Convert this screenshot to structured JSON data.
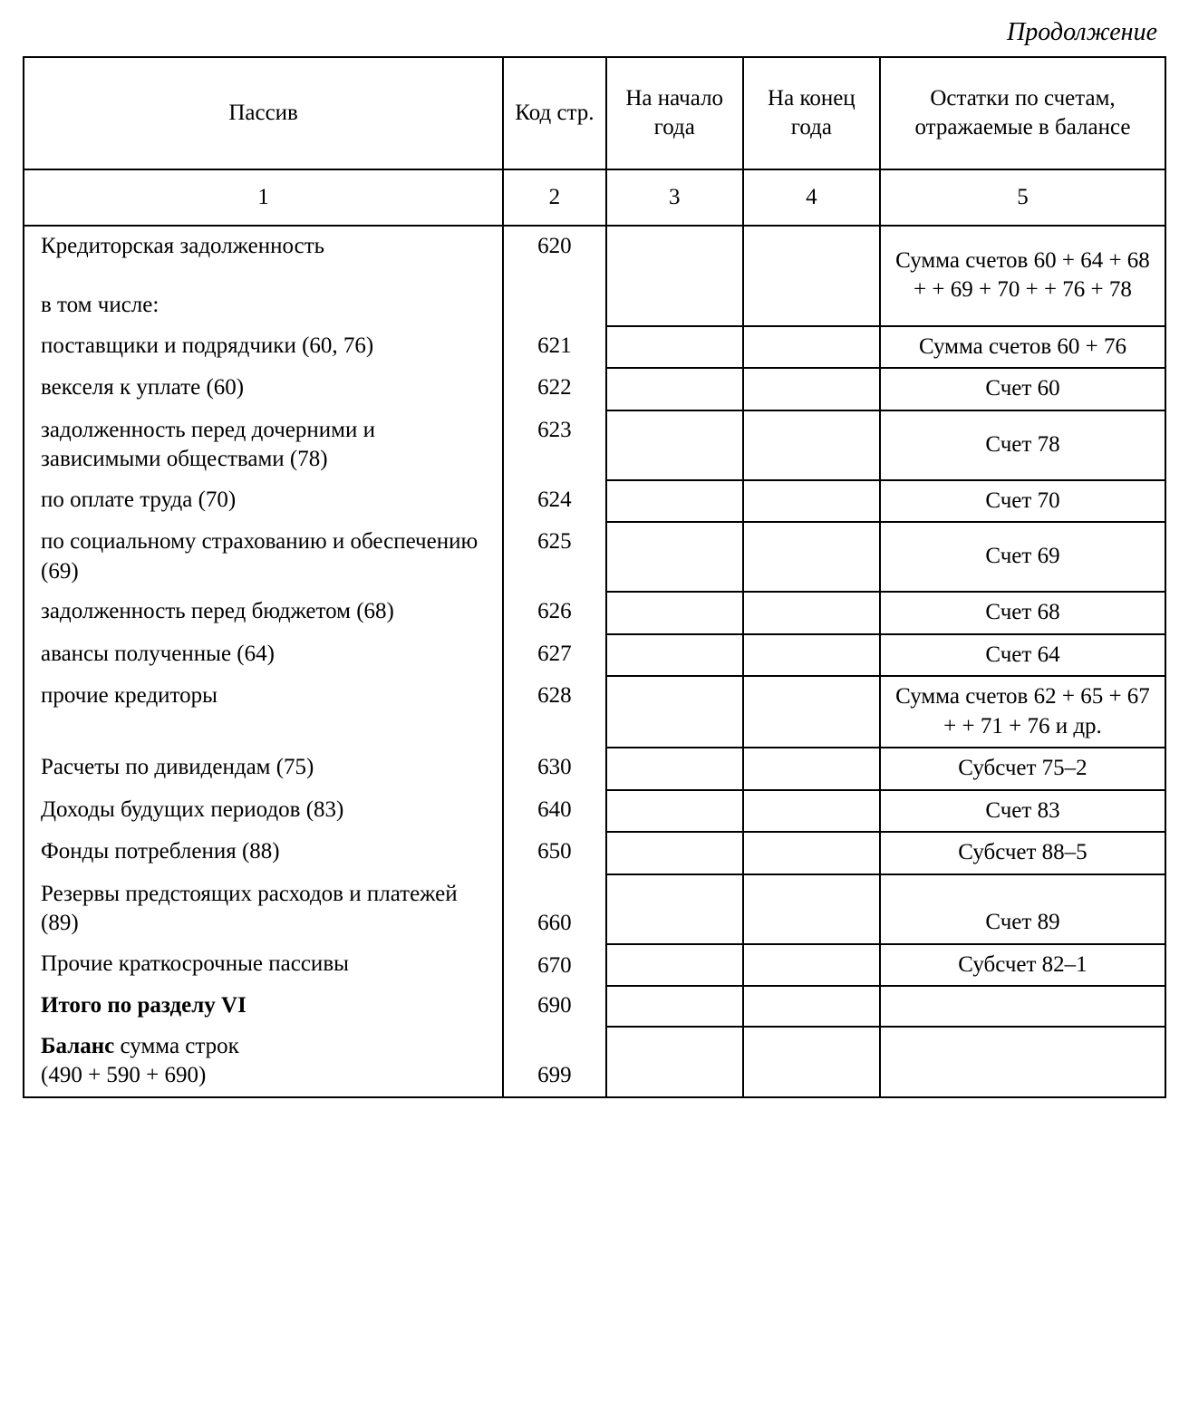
{
  "continuation": "Продолжение",
  "header": {
    "c1": "Пассив",
    "c2": "Код стр.",
    "c3": "На начало года",
    "c4": "На конец года",
    "c5": "Остатки по сче­там, отражаемые в балансе"
  },
  "numrow": {
    "c1": "1",
    "c2": "2",
    "c3": "3",
    "c4": "4",
    "c5": "5"
  },
  "rows": [
    {
      "label": "Кредиторская задолженность\n\nв том числе:",
      "code": "620",
      "start": "",
      "end": "",
      "note": "Сумма счетов 60 + 64 + 68 + + 69 + 70 + + 76 + 78"
    },
    {
      "label": "поставщики и подрядчики (60, 76)",
      "code": "621",
      "start": "",
      "end": "",
      "note": "Сумма счетов 60 + 76"
    },
    {
      "label": "векселя к уплате (60)",
      "code": "622",
      "start": "",
      "end": "",
      "note": "Счет 60"
    },
    {
      "label": "задолженность перед дочерни­ми и зависимыми обществами (78)",
      "code": "623",
      "start": "",
      "end": "",
      "note": "Счет 78"
    },
    {
      "label": "по оплате труда (70)",
      "code": "624",
      "start": "",
      "end": "",
      "note": "Счет 70"
    },
    {
      "label": "по социальному страхованию и обеспечению (69)",
      "code": "625",
      "start": "",
      "end": "",
      "note": "Счет 69"
    },
    {
      "label": "задолженность перед бюдже­том (68)",
      "code": "626",
      "start": "",
      "end": "",
      "note": "Счет 68"
    },
    {
      "label": "авансы полученные (64)",
      "code": "627",
      "start": "",
      "end": "",
      "note": "Счет 64"
    },
    {
      "label": "прочие кредиторы",
      "code": "628",
      "start": "",
      "end": "",
      "note": "Сумма счетов 62 + 65 + 67 + + 71 + 76 и др."
    },
    {
      "label": "Расчеты по дивидендам (75)",
      "code": "630",
      "start": "",
      "end": "",
      "note": "Субсчет 75–2"
    },
    {
      "label": "Доходы будущих периодов (83)",
      "code": "640",
      "start": "",
      "end": "",
      "note": "Счет 83"
    },
    {
      "label": "Фонды потребления (88)",
      "code": "650",
      "start": "",
      "end": "",
      "note": "Субсчет 88–5"
    },
    {
      "label": "Резервы предстоящих расходов и платежей (89)",
      "code": "660",
      "start": "",
      "end": "",
      "note": "Счет 89"
    },
    {
      "label": "Прочие краткосрочные пасси­вы",
      "code": "670",
      "start": "",
      "end": "",
      "note": "Субсчет 82–1"
    },
    {
      "label": "Итого по разделу VI",
      "bold": true,
      "code": "690",
      "start": "",
      "end": "",
      "note": ""
    },
    {
      "label": "Баланс сумма строк\n(490 + 590 + 690)",
      "boldPrefix": "Баланс",
      "code": "699",
      "start": "",
      "end": "",
      "note": ""
    }
  ],
  "colWidths": {
    "c1": "42%",
    "c2": "9%",
    "c3": "12%",
    "c4": "12%",
    "c5": "25%"
  }
}
